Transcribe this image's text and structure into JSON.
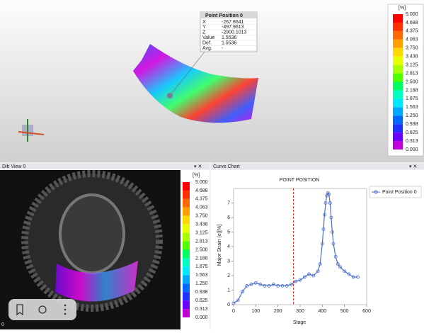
{
  "viewport": {
    "point_box": {
      "title": "Point Position 0",
      "rows": [
        [
          "X",
          "-267.8641"
        ],
        [
          "Y",
          "-497.9613"
        ],
        [
          "Z",
          "-2900.1013"
        ],
        [
          "Value",
          "1.5536"
        ],
        [
          "Def.",
          "1.5536"
        ],
        [
          "Avg.",
          "-"
        ]
      ]
    },
    "scale": {
      "unit": "[%]",
      "labels": [
        "5.000",
        "4.688",
        "4.375",
        "4.063",
        "3.750",
        "3.438",
        "3.125",
        "2.813",
        "2.500",
        "2.188",
        "1.875",
        "1.563",
        "1.250",
        "0.938",
        "0.625",
        "0.313",
        "0.000"
      ],
      "colors": [
        "#ff0000",
        "#ff3000",
        "#ff6a00",
        "#ffa000",
        "#ffd800",
        "#e8ff00",
        "#a8ff00",
        "#50ff00",
        "#00ff60",
        "#00ffc0",
        "#00e8ff",
        "#00a8ff",
        "#0068ff",
        "#2030ff",
        "#6a00ff",
        "#c000d8"
      ]
    }
  },
  "dib_view": {
    "title": "Dib View 0",
    "corner": "0",
    "scale": {
      "unit": "[%]",
      "labels": [
        "5.000",
        "4.688",
        "4.375",
        "4.063",
        "3.750",
        "3.438",
        "3.125",
        "2.813",
        "2.500",
        "2.188",
        "1.875",
        "1.563",
        "1.250",
        "0.938",
        "0.625",
        "0.313",
        "0.000"
      ]
    }
  },
  "curve_panel": {
    "title": "Curve Chart"
  },
  "chart_data": {
    "type": "line",
    "title": "POINT POSITION",
    "x_label": "Stage",
    "y_label": "Major Strain (e)[%]",
    "x": [
      0,
      20,
      40,
      60,
      80,
      100,
      120,
      140,
      160,
      180,
      200,
      220,
      240,
      260,
      280,
      300,
      320,
      340,
      360,
      380,
      390,
      400,
      405,
      410,
      415,
      420,
      425,
      430,
      435,
      440,
      445,
      450,
      460,
      470,
      480,
      500,
      520,
      540,
      560
    ],
    "series": [
      {
        "name": "Point Position 0",
        "color": "#4a6fc8",
        "values": [
          0.1,
          0.3,
          0.9,
          1.3,
          1.4,
          1.5,
          1.4,
          1.3,
          1.3,
          1.4,
          1.3,
          1.3,
          1.3,
          1.4,
          1.6,
          1.7,
          1.9,
          2.1,
          2.0,
          2.3,
          2.8,
          4.2,
          5.2,
          6.2,
          7.0,
          7.5,
          7.7,
          7.6,
          7.0,
          6.0,
          5.0,
          4.2,
          3.3,
          2.8,
          2.6,
          2.3,
          2.1,
          1.9,
          1.9
        ]
      }
    ],
    "xlim": [
      0,
      600
    ],
    "xticks": [
      0,
      100,
      200,
      300,
      400,
      500,
      600
    ],
    "ylim": [
      0,
      8
    ],
    "yticks": [
      0,
      1,
      2,
      3,
      4,
      5,
      6,
      7
    ],
    "reference_line": {
      "x": 270,
      "color": "#e02020"
    }
  }
}
